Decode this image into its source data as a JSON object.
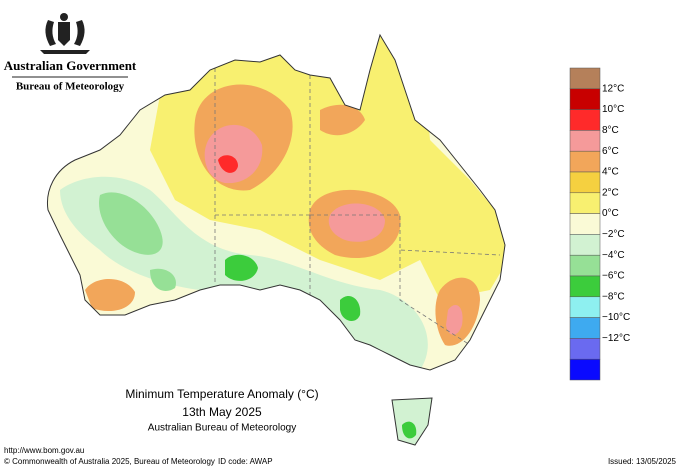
{
  "header": {
    "title": "Australian Government",
    "subtitle": "Bureau of Meteorology"
  },
  "map": {
    "title": "Minimum Temperature Anomaly (°C)",
    "date": "13th May 2025",
    "source": "Australian Bureau of Meteorology"
  },
  "legend": {
    "colors": [
      "#b5805a",
      "#c80000",
      "#ff2a2a",
      "#f59a9a",
      "#f2a65a",
      "#f5d040",
      "#f8f070",
      "#fafad6",
      "#d2f2d2",
      "#96e096",
      "#3ccc3c",
      "#8ef0f0",
      "#3eaaf0",
      "#6a6af0",
      "#0a0aff"
    ],
    "labels": [
      "12°C",
      "10°C",
      "8°C",
      "6°C",
      "4°C",
      "2°C",
      "0°C",
      "−2°C",
      "−4°C",
      "−6°C",
      "−8°C",
      "−10°C",
      "−12°C"
    ]
  },
  "footer": {
    "url": "http://www.bom.gov.au",
    "copyright": "© Commonwealth of Australia 2025, Bureau of Meteorology",
    "id_code": "ID code: AWAP",
    "issued": "Issued: 13/05/2025"
  }
}
